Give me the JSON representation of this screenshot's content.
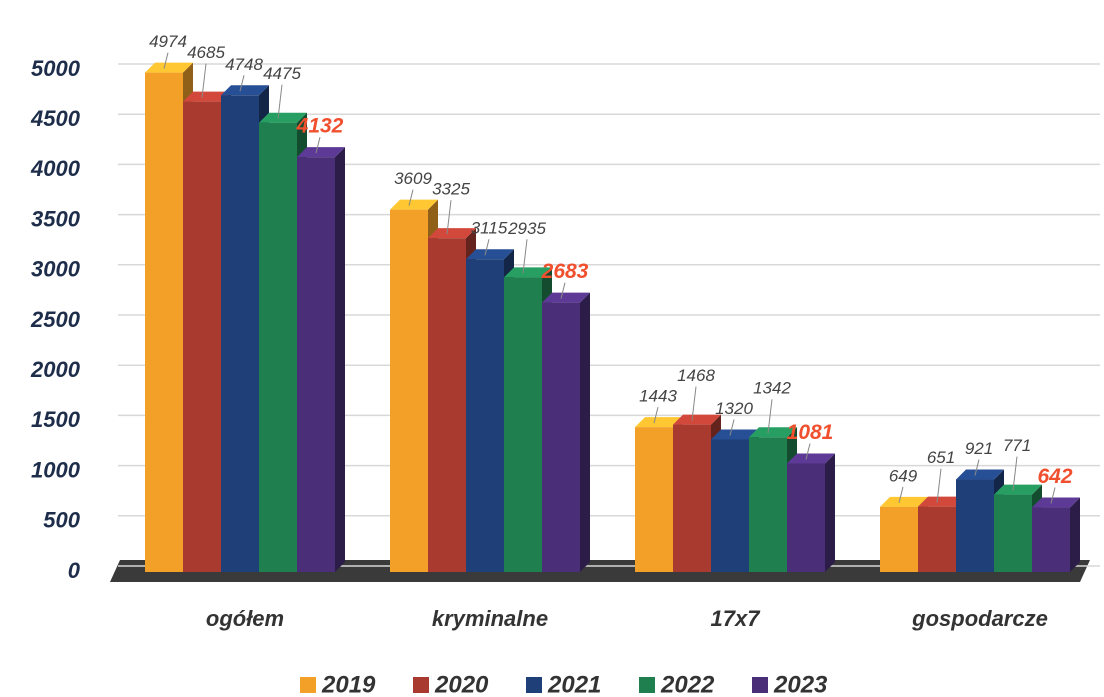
{
  "chart_data": {
    "type": "bar3d",
    "categories": [
      "ogółem",
      "kryminalne",
      "17x7",
      "gospodarcze"
    ],
    "series": [
      {
        "name": "2019",
        "color": "#f2a028",
        "values": [
          4974,
          3609,
          1443,
          649
        ]
      },
      {
        "name": "2020",
        "color": "#a83a30",
        "values": [
          4685,
          3325,
          1468,
          651
        ]
      },
      {
        "name": "2021",
        "color": "#1f3f78",
        "values": [
          4748,
          3115,
          1320,
          921
        ]
      },
      {
        "name": "2022",
        "color": "#1f7f4e",
        "values": [
          4475,
          2935,
          1342,
          771
        ]
      },
      {
        "name": "2023",
        "color": "#4a2e78",
        "values": [
          4132,
          2683,
          1081,
          642
        ],
        "label_color": "#f0502e",
        "label_bold": true
      }
    ],
    "ylim": [
      0,
      5000
    ],
    "yticks": [
      0,
      500,
      1000,
      1500,
      2000,
      2500,
      3000,
      3500,
      4000,
      4500,
      5000
    ],
    "grid": true,
    "legend": "bottom"
  }
}
